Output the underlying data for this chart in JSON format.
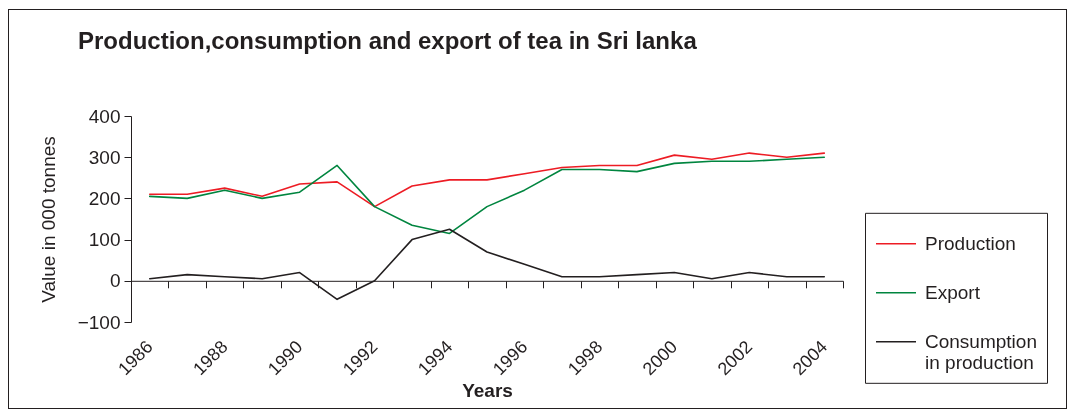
{
  "chart_data": {
    "type": "line",
    "title": "Production,consumption and export of tea in Sri lanka",
    "xlabel": "Years",
    "ylabel": "Value in 000 tonnes",
    "categories": [
      "1986",
      null,
      "1988",
      null,
      "1990",
      null,
      "1992",
      null,
      "1994",
      null,
      "1996",
      null,
      "1998",
      null,
      "2000",
      null,
      "2002",
      null,
      "2004"
    ],
    "ylim": [
      -100,
      400
    ],
    "yticks": [
      -100,
      0,
      100,
      200,
      300,
      400
    ],
    "legend": "right",
    "series": [
      {
        "name": "Production",
        "color": "#ed1c24",
        "values": [
          210,
          210,
          225,
          205,
          235,
          240,
          180,
          230,
          245,
          245,
          260,
          275,
          280,
          280,
          305,
          295,
          310,
          300,
          310
        ]
      },
      {
        "name": "Export",
        "color": "#00853f",
        "values": [
          205,
          200,
          220,
          200,
          215,
          280,
          180,
          135,
          115,
          180,
          220,
          270,
          270,
          265,
          285,
          290,
          290,
          295,
          300
        ]
      },
      {
        "name": "Consumption in production",
        "color": "#231f20",
        "values": [
          5,
          15,
          10,
          5,
          20,
          -45,
          0,
          100,
          125,
          70,
          40,
          10,
          10,
          15,
          20,
          5,
          20,
          10,
          10
        ]
      }
    ]
  }
}
